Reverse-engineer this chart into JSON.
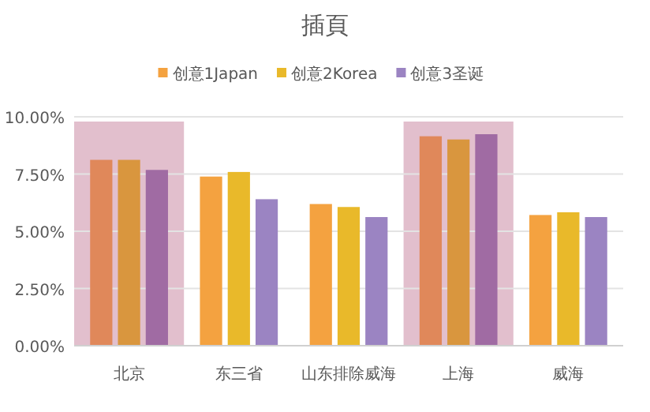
{
  "chart_data": {
    "type": "bar",
    "title": "插頁",
    "categories": [
      "北京",
      "东三省",
      "山东排除威海",
      "上海",
      "威海"
    ],
    "series": [
      {
        "name": "创意1Japan",
        "color": "#f4a240",
        "colors": [
          "#e0885a",
          "#f4a240",
          "#f4a240",
          "#e0885a",
          "#f4a240"
        ],
        "values": [
          8.12,
          7.39,
          6.19,
          9.15,
          5.71
        ]
      },
      {
        "name": "创意2Korea",
        "color": "#e9b92a",
        "colors": [
          "#d9963e",
          "#e9b92a",
          "#e9b92a",
          "#d9963e",
          "#e9b92a"
        ],
        "values": [
          8.12,
          7.59,
          6.06,
          9.01,
          5.83
        ]
      },
      {
        "name": "创意3圣诞",
        "color": "#9b84c2",
        "colors": [
          "#a06ba3",
          "#9b84c2",
          "#9b84c2",
          "#a06ba3",
          "#9b84c2"
        ],
        "values": [
          7.68,
          6.4,
          5.62,
          9.24,
          5.62
        ]
      }
    ],
    "ylim": [
      0,
      10
    ],
    "yticks": [
      {
        "value": 0,
        "label": "0.00%"
      },
      {
        "value": 2.5,
        "label": "2.50%"
      },
      {
        "value": 5,
        "label": "5.00%"
      },
      {
        "value": 7.5,
        "label": "7.50%"
      },
      {
        "value": 10,
        "label": "10.00%"
      }
    ],
    "grid": "y",
    "legend": "top",
    "bands": [
      {
        "axis": "x",
        "from": "北京",
        "to": "北京",
        "color": "#e2bfcd"
      },
      {
        "axis": "x",
        "from": "上海",
        "to": "上海",
        "color": "#e2bfcd"
      }
    ]
  }
}
